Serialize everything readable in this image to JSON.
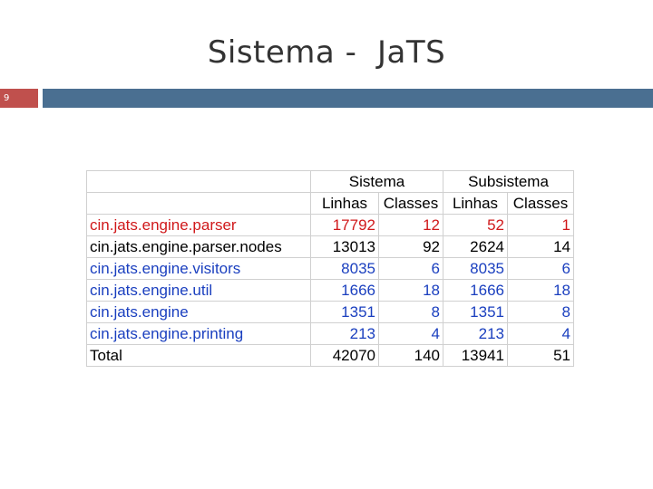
{
  "slide": {
    "title": "Sistema -  JaTS",
    "number": "9"
  },
  "colors": {
    "title_bar": "#4a6f91",
    "number_box": "#c0504d",
    "red_text": "#d0191b",
    "blue_text": "#1a3fbf"
  },
  "table": {
    "group_headers": [
      "Sistema",
      "Subsistema"
    ],
    "column_headers": [
      "Linhas",
      "Classes",
      "Linhas",
      "Classes"
    ],
    "rows": [
      {
        "name": "cin.jats.engine.parser",
        "values": [
          "17792",
          "12",
          "52",
          "1"
        ],
        "color": "red"
      },
      {
        "name": "cin.jats.engine.parser.nodes",
        "values": [
          "13013",
          "92",
          "2624",
          "14"
        ],
        "color": "black"
      },
      {
        "name": "cin.jats.engine.visitors",
        "values": [
          "8035",
          "6",
          "8035",
          "6"
        ],
        "color": "blue"
      },
      {
        "name": "cin.jats.engine.util",
        "values": [
          "1666",
          "18",
          "1666",
          "18"
        ],
        "color": "blue"
      },
      {
        "name": "cin.jats.engine",
        "values": [
          "1351",
          "8",
          "1351",
          "8"
        ],
        "color": "blue"
      },
      {
        "name": "cin.jats.engine.printing",
        "values": [
          "213",
          "4",
          "213",
          "4"
        ],
        "color": "blue"
      },
      {
        "name": "Total",
        "values": [
          "42070",
          "140",
          "13941",
          "51"
        ],
        "color": "black"
      }
    ]
  }
}
